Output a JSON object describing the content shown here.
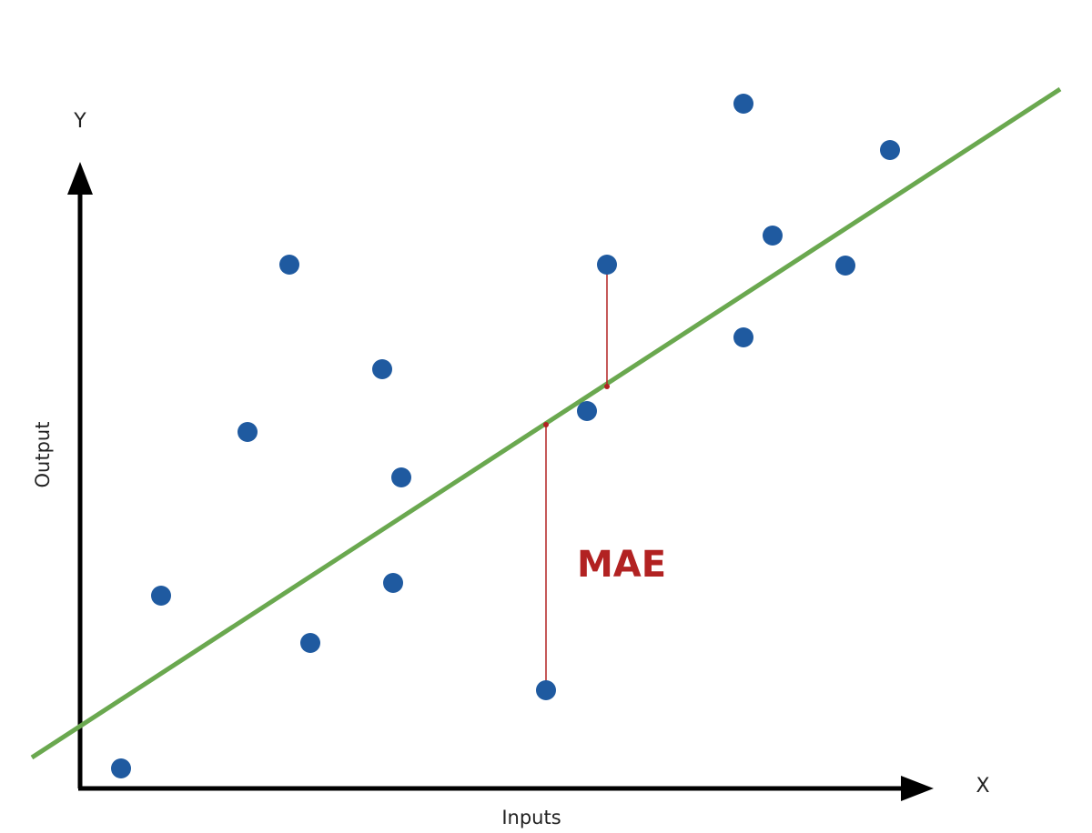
{
  "axes": {
    "y_label": "Y",
    "x_label": "X",
    "y_title": "Output",
    "x_title": "Inputs"
  },
  "annotation": "MAE"
}
